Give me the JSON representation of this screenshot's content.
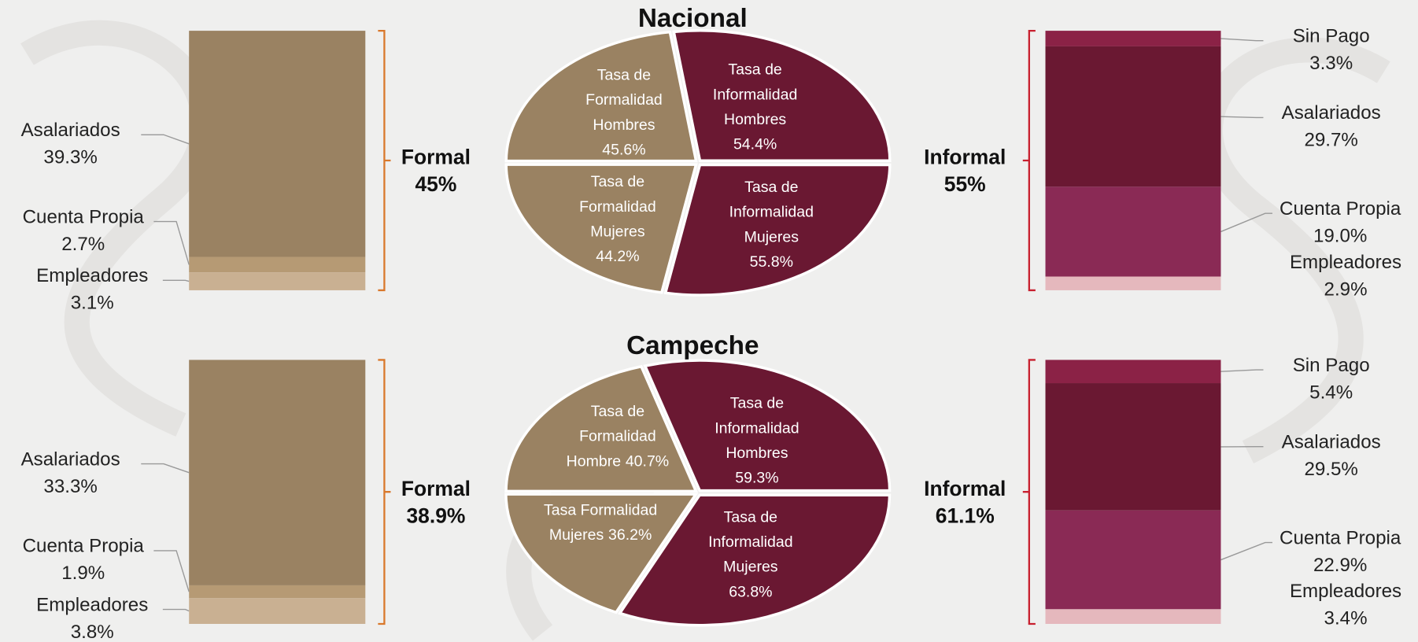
{
  "chart_data": [
    {
      "type": "bar",
      "stacked": true,
      "group": "Formal",
      "total": 45,
      "total_label": "45%",
      "bracket_color": "#d9782b",
      "categories": [
        "Asalariados",
        "Cuenta Propia",
        "Empleadores"
      ],
      "values": [
        39.3,
        2.7,
        3.1
      ],
      "value_labels": [
        "39.3%",
        "2.7%",
        "3.1%"
      ],
      "colors": [
        "#9a8262",
        "#b69a74",
        "#c9b092"
      ]
    },
    {
      "type": "pie",
      "title": "Nacional",
      "labels": [
        [
          "Tasa de",
          "Formalidad",
          "Hombres"
        ],
        [
          "Tasa de",
          "Informalidad",
          "Hombres"
        ],
        [
          "Tasa de",
          "Formalidad",
          "Mujeres"
        ],
        [
          "Tasa de",
          "Informalidad",
          "Mujeres"
        ]
      ],
      "values": [
        45.6,
        54.4,
        44.2,
        55.8
      ],
      "value_labels": [
        "45.6%",
        "54.4%",
        "44.2%",
        "55.8%"
      ],
      "colors": [
        "#9a8262",
        "#6a1832",
        "#9a8262",
        "#6a1832"
      ]
    },
    {
      "type": "bar",
      "stacked": true,
      "group": "Informal",
      "total": 55,
      "total_label": "55%",
      "bracket_color": "#c8202f",
      "categories": [
        "Sin Pago",
        "Asalariados",
        "Cuenta Propia",
        "Empleadores"
      ],
      "values": [
        3.3,
        29.7,
        19.0,
        2.9
      ],
      "value_labels": [
        "3.3%",
        "29.7%",
        "19.0%",
        "2.9%"
      ],
      "colors": [
        "#8b2246",
        "#6a1832",
        "#8a2a55",
        "#e5b8bd"
      ]
    },
    {
      "type": "bar",
      "stacked": true,
      "group": "Formal",
      "total": 38.9,
      "total_label": "38.9%",
      "bracket_color": "#d9782b",
      "categories": [
        "Asalariados",
        "Cuenta Propia",
        "Empleadores"
      ],
      "values": [
        33.3,
        1.9,
        3.8
      ],
      "value_labels": [
        "33.3%",
        "1.9%",
        "3.8%"
      ],
      "colors": [
        "#9a8262",
        "#b69a74",
        "#c9b092"
      ]
    },
    {
      "type": "pie",
      "title": "Campeche",
      "labels": [
        [
          "Tasa de",
          "Formalidad",
          "Hombre"
        ],
        [
          "Tasa de",
          "Informalidad",
          "Hombres"
        ],
        [
          "Tasa Formalidad",
          "Mujeres"
        ],
        [
          "Tasa de",
          "Informalidad",
          "Mujeres"
        ]
      ],
      "values": [
        40.7,
        59.3,
        36.2,
        63.8
      ],
      "value_labels": [
        "40.7%",
        "59.3%",
        "36.2%",
        "63.8%"
      ],
      "colors": [
        "#9a8262",
        "#6a1832",
        "#9a8262",
        "#6a1832"
      ]
    },
    {
      "type": "bar",
      "stacked": true,
      "group": "Informal",
      "total": 61.1,
      "total_label": "61.1%",
      "bracket_color": "#c8202f",
      "categories": [
        "Sin Pago",
        "Asalariados",
        "Cuenta Propia",
        "Empleadores"
      ],
      "values": [
        5.4,
        29.5,
        22.9,
        3.4
      ],
      "value_labels": [
        "5.4%",
        "29.5%",
        "22.9%",
        "3.4%"
      ],
      "colors": [
        "#8b2246",
        "#6a1832",
        "#8a2a55",
        "#e5b8bd"
      ]
    }
  ]
}
